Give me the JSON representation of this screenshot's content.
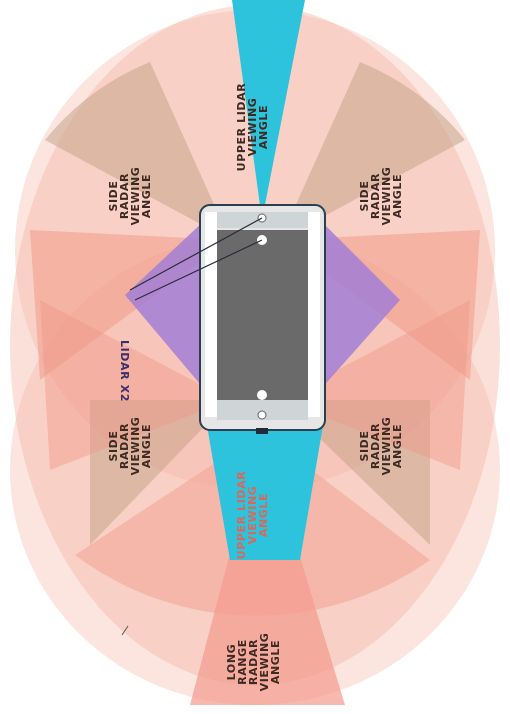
{
  "labels": {
    "upper_lidar_front": "UPPER LIDAR VIEWING ANGLE",
    "upper_lidar_rear": "UPPER LIDAR VIEWING ANGLE",
    "side_radar_front_left": "SIDE RADAR VIEWING ANGLE",
    "side_radar_front_right": "SIDE RADAR VIEWING ANGLE",
    "side_radar_rear_left": "SIDE RADAR VIEWING ANGLE",
    "side_radar_rear_right": "SIDE RADAR VIEWING ANGLE",
    "lidar_x2": "LIDAR X2",
    "long_range_radar": "LONG RANGE RADAR VIEWING ANGLE"
  },
  "colors": {
    "radar_fill": "#f6b6a8",
    "radar_dark": "#c9a488",
    "lidar_cyan": "#2ec3dc",
    "lidar_purple": "#a27fd6",
    "car_body": "#d9d9d9",
    "car_roof": "#6b6b6b",
    "label_dark": "#3d2a22",
    "label_red": "#d9685a"
  }
}
